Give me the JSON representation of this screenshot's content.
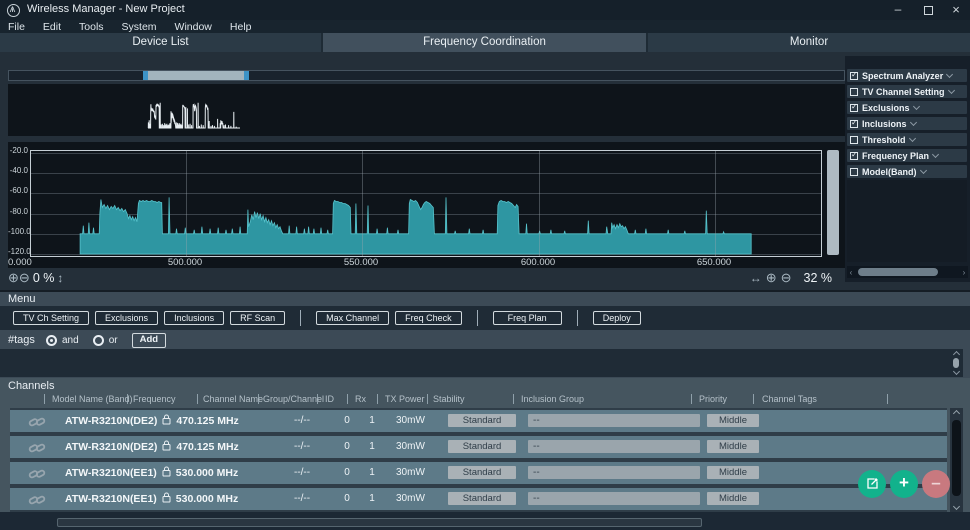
{
  "window": {
    "title": "Wireless Manager - New Project",
    "minimize": "–",
    "close": "×"
  },
  "menubar": {
    "items": [
      "File",
      "Edit",
      "Tools",
      "System",
      "Window",
      "Help"
    ]
  },
  "tabs": {
    "device_list": "Device List",
    "frequency_coordination": "Frequency Coordination",
    "monitor": "Monitor",
    "active": "Frequency Coordination"
  },
  "icons": {
    "zoom_in": "⊕",
    "zoom_out": "⊖",
    "v_arrows": "↕",
    "h_arrows": "↔"
  },
  "spectrum": {
    "left_zoom": "0 %",
    "right_zoom": "32 %",
    "y_labels": [
      "-20.0",
      "-40.0",
      "-60.0",
      "-80.0",
      "-100.0",
      "-120.0"
    ],
    "x_origin": "0.000",
    "x_ticks": [
      {
        "mhz": 500,
        "label": "500.000"
      },
      {
        "mhz": 550,
        "label": "550.000"
      },
      {
        "mhz": 600,
        "label": "600.000"
      },
      {
        "mhz": 650,
        "label": "650.000"
      }
    ],
    "colors": {
      "trace": "#2e96a2",
      "trace_edge": "#57c3cc",
      "background": "#0e141a"
    },
    "chart_data": {
      "type": "area",
      "x_unit": "MHz",
      "y_unit": "dB",
      "x_range": [
        456,
        680
      ],
      "y_range": [
        -122,
        -18
      ],
      "noise_floor_db": -100,
      "points": [
        [
          470,
          -120
        ],
        [
          470,
          -100
        ],
        [
          470.7,
          -100
        ],
        [
          470.9,
          -92
        ],
        [
          471.1,
          -100
        ],
        [
          472.3,
          -100
        ],
        [
          472.5,
          -89
        ],
        [
          472.7,
          -100
        ],
        [
          473.6,
          -100
        ],
        [
          473.8,
          -94
        ],
        [
          474,
          -100
        ],
        [
          475.4,
          -100
        ],
        [
          475.6,
          -79
        ],
        [
          475.9,
          -66
        ],
        [
          476.3,
          -74
        ],
        [
          476.8,
          -71
        ],
        [
          477.3,
          -75
        ],
        [
          477.8,
          -72
        ],
        [
          478.3,
          -76
        ],
        [
          478.8,
          -73
        ],
        [
          479.3,
          -75
        ],
        [
          479.8,
          -72
        ],
        [
          480.3,
          -76
        ],
        [
          480.8,
          -74
        ],
        [
          481.3,
          -77
        ],
        [
          481.8,
          -75
        ],
        [
          482.3,
          -78
        ],
        [
          482.8,
          -76
        ],
        [
          483.3,
          -80
        ],
        [
          483.7,
          -85
        ],
        [
          484.1,
          -82
        ],
        [
          484.5,
          -86
        ],
        [
          484.9,
          -83
        ],
        [
          485.3,
          -87
        ],
        [
          485.7,
          -84
        ],
        [
          486.1,
          -88
        ],
        [
          486.5,
          -70
        ],
        [
          486.8,
          -67
        ],
        [
          487.3,
          -68
        ],
        [
          487.8,
          -67
        ],
        [
          488.3,
          -68
        ],
        [
          488.8,
          -67
        ],
        [
          489.3,
          -68
        ],
        [
          489.8,
          -68
        ],
        [
          490.3,
          -67
        ],
        [
          490.8,
          -68
        ],
        [
          491.3,
          -68
        ],
        [
          491.8,
          -69
        ],
        [
          492.3,
          -68
        ],
        [
          492.8,
          -69
        ],
        [
          493.1,
          -69
        ],
        [
          493.3,
          -100
        ],
        [
          495,
          -100
        ],
        [
          495.2,
          -64
        ],
        [
          495.45,
          -100
        ],
        [
          497.1,
          -100
        ],
        [
          497.3,
          -95
        ],
        [
          497.5,
          -100
        ],
        [
          499.6,
          -100
        ],
        [
          499.8,
          -94
        ],
        [
          500,
          -100
        ],
        [
          502.1,
          -100
        ],
        [
          502.3,
          -96
        ],
        [
          502.5,
          -100
        ],
        [
          504.3,
          -100
        ],
        [
          504.5,
          -93
        ],
        [
          504.7,
          -100
        ],
        [
          506.6,
          -100
        ],
        [
          506.8,
          -95
        ],
        [
          507,
          -100
        ],
        [
          508.9,
          -100
        ],
        [
          509.1,
          -94
        ],
        [
          509.3,
          -100
        ],
        [
          511.1,
          -100
        ],
        [
          511.3,
          -96
        ],
        [
          511.5,
          -100
        ],
        [
          512.9,
          -100
        ],
        [
          513.1,
          -95
        ],
        [
          513.3,
          -100
        ],
        [
          515.1,
          -100
        ],
        [
          515.3,
          -93
        ],
        [
          515.5,
          -100
        ],
        [
          517.3,
          -100
        ],
        [
          517.5,
          -76
        ],
        [
          517.7,
          -93
        ],
        [
          518.2,
          -88
        ],
        [
          518.6,
          -81
        ],
        [
          519,
          -86
        ],
        [
          519.4,
          -78
        ],
        [
          519.8,
          -84
        ],
        [
          520.2,
          -79
        ],
        [
          520.6,
          -85
        ],
        [
          521,
          -80
        ],
        [
          521.4,
          -86
        ],
        [
          521.8,
          -82
        ],
        [
          522.2,
          -88
        ],
        [
          522.6,
          -84
        ],
        [
          523,
          -89
        ],
        [
          523.4,
          -86
        ],
        [
          523.8,
          -91
        ],
        [
          524.2,
          -87
        ],
        [
          524.6,
          -92
        ],
        [
          525,
          -89
        ],
        [
          525.4,
          -94
        ],
        [
          525.8,
          -91
        ],
        [
          526.2,
          -95
        ],
        [
          526.6,
          -93
        ],
        [
          527,
          -97
        ],
        [
          527.4,
          -100
        ],
        [
          529,
          -100
        ],
        [
          529.2,
          -92
        ],
        [
          529.4,
          -100
        ],
        [
          531.1,
          -100
        ],
        [
          531.3,
          -93
        ],
        [
          531.5,
          -100
        ],
        [
          533.3,
          -100
        ],
        [
          533.5,
          -95
        ],
        [
          533.7,
          -100
        ],
        [
          534.5,
          -100
        ],
        [
          534.7,
          -93
        ],
        [
          534.9,
          -100
        ],
        [
          536,
          -100
        ],
        [
          536.2,
          -95
        ],
        [
          536.4,
          -100
        ],
        [
          538,
          -100
        ],
        [
          538.2,
          -94
        ],
        [
          538.4,
          -100
        ],
        [
          539.9,
          -100
        ],
        [
          540.1,
          -96
        ],
        [
          540.3,
          -100
        ],
        [
          541.5,
          -100
        ],
        [
          541.7,
          -70
        ],
        [
          542,
          -67
        ],
        [
          542.5,
          -68
        ],
        [
          543,
          -68
        ],
        [
          543.5,
          -69
        ],
        [
          544,
          -69
        ],
        [
          544.5,
          -70
        ],
        [
          545,
          -70
        ],
        [
          545.5,
          -71
        ],
        [
          546,
          -72
        ],
        [
          546.5,
          -74
        ],
        [
          546.7,
          -100
        ],
        [
          547.9,
          -100
        ],
        [
          548.1,
          -70
        ],
        [
          548.35,
          -100
        ],
        [
          551.3,
          -100
        ],
        [
          551.5,
          -72
        ],
        [
          551.7,
          -100
        ],
        [
          553.9,
          -100
        ],
        [
          554.1,
          -95
        ],
        [
          554.3,
          -100
        ],
        [
          556.8,
          -100
        ],
        [
          557,
          -94
        ],
        [
          557.2,
          -100
        ],
        [
          559.8,
          -100
        ],
        [
          560,
          -96
        ],
        [
          560.2,
          -100
        ],
        [
          563,
          -100
        ],
        [
          563.2,
          -70
        ],
        [
          563.5,
          -66
        ],
        [
          564,
          -67
        ],
        [
          564.5,
          -68
        ],
        [
          565,
          -67
        ],
        [
          565.5,
          -69
        ],
        [
          566,
          -73
        ],
        [
          566.4,
          -76
        ],
        [
          566.8,
          -74
        ],
        [
          567.2,
          -71
        ],
        [
          567.6,
          -69
        ],
        [
          568,
          -68
        ],
        [
          568.5,
          -69
        ],
        [
          569,
          -70
        ],
        [
          569.5,
          -72
        ],
        [
          570,
          -74
        ],
        [
          570.3,
          -100
        ],
        [
          573.4,
          -100
        ],
        [
          573.6,
          -64
        ],
        [
          573.85,
          -100
        ],
        [
          576,
          -100
        ],
        [
          576.2,
          -97
        ],
        [
          576.4,
          -100
        ],
        [
          580,
          -100
        ],
        [
          580.2,
          -95
        ],
        [
          580.4,
          -100
        ],
        [
          583.9,
          -100
        ],
        [
          584.1,
          -96
        ],
        [
          584.3,
          -100
        ],
        [
          588.1,
          -100
        ],
        [
          588.3,
          -72
        ],
        [
          588.7,
          -68
        ],
        [
          589.2,
          -67
        ],
        [
          589.7,
          -68
        ],
        [
          590.2,
          -68
        ],
        [
          590.7,
          -69
        ],
        [
          591.2,
          -68
        ],
        [
          591.7,
          -69
        ],
        [
          592.2,
          -70
        ],
        [
          592.7,
          -72
        ],
        [
          593.2,
          -74
        ],
        [
          593.6,
          -71
        ],
        [
          594,
          -73
        ],
        [
          594.3,
          -100
        ],
        [
          596.2,
          -100
        ],
        [
          596.4,
          -90
        ],
        [
          596.6,
          -100
        ],
        [
          599.9,
          -100
        ],
        [
          600.1,
          -97
        ],
        [
          600.3,
          -100
        ],
        [
          603.1,
          -100
        ],
        [
          603.3,
          -96
        ],
        [
          603.5,
          -100
        ],
        [
          607,
          -100
        ],
        [
          607.2,
          -97
        ],
        [
          607.4,
          -100
        ],
        [
          613.7,
          -100
        ],
        [
          613.9,
          -87
        ],
        [
          614.1,
          -100
        ],
        [
          618.9,
          -100
        ],
        [
          619.1,
          -93
        ],
        [
          619.4,
          -100
        ],
        [
          620.3,
          -100
        ],
        [
          620.5,
          -89
        ],
        [
          620.8,
          -94
        ],
        [
          621.2,
          -91
        ],
        [
          621.6,
          -95
        ],
        [
          622,
          -91
        ],
        [
          622.4,
          -94
        ],
        [
          622.8,
          -90
        ],
        [
          623.2,
          -93
        ],
        [
          623.6,
          -92
        ],
        [
          624,
          -95
        ],
        [
          624.4,
          -93
        ],
        [
          624.8,
          -96
        ],
        [
          625.2,
          -100
        ],
        [
          627,
          -100
        ],
        [
          627.2,
          -96
        ],
        [
          627.4,
          -100
        ],
        [
          630,
          -100
        ],
        [
          630.2,
          -95
        ],
        [
          630.4,
          -100
        ],
        [
          636.3,
          -100
        ],
        [
          636.5,
          -96
        ],
        [
          636.7,
          -100
        ],
        [
          641,
          -100
        ],
        [
          641.2,
          -97
        ],
        [
          641.4,
          -100
        ],
        [
          647.1,
          -100
        ],
        [
          647.3,
          -77
        ],
        [
          647.55,
          -100
        ],
        [
          652,
          -100
        ],
        [
          652.2,
          -98
        ],
        [
          652.4,
          -100
        ],
        [
          660,
          -100
        ],
        [
          660,
          -120
        ]
      ]
    }
  },
  "right_panel": {
    "items": [
      {
        "label": "Spectrum Analyzer",
        "checked": true
      },
      {
        "label": "TV Channel Setting",
        "checked": false
      },
      {
        "label": "Exclusions",
        "checked": true
      },
      {
        "label": "Inclusions",
        "checked": true
      },
      {
        "label": "Threshold",
        "checked": false
      },
      {
        "label": "Frequency Plan",
        "checked": true
      },
      {
        "label": "Model(Band)",
        "checked": false
      }
    ]
  },
  "menu_section": {
    "title": "Menu",
    "groups": [
      [
        "TV Ch Setting",
        "Exclusions",
        "Inclusions",
        "RF Scan"
      ],
      [
        "Max Channel",
        "Freq Check"
      ],
      [
        "Freq Plan"
      ],
      [
        "Deploy"
      ]
    ],
    "tags": {
      "label": "#tags",
      "and_label": "and",
      "or_label": "or",
      "and_selected": true,
      "or_selected": false,
      "add_label": "Add"
    }
  },
  "channels": {
    "title": "Channels",
    "columns": [
      "Model Name (Band)",
      "Frequency",
      "Channel Name",
      "Group/Channel",
      "ID",
      "Rx",
      "TX Power",
      "Stability",
      "Inclusion Group",
      "Priority",
      "Channel Tags"
    ],
    "rows": [
      {
        "model": "ATW-R3210N(DE2)",
        "frequency": "470.125 MHz",
        "channel_name": "",
        "group_channel": "--/--",
        "id": "0",
        "rx": "1",
        "tx_power": "30mW",
        "stability": "Standard",
        "inclusion_group": "--",
        "priority": "Middle",
        "channel_tags": ""
      },
      {
        "model": "ATW-R3210N(DE2)",
        "frequency": "470.125 MHz",
        "channel_name": "",
        "group_channel": "--/--",
        "id": "0",
        "rx": "1",
        "tx_power": "30mW",
        "stability": "Standard",
        "inclusion_group": "--",
        "priority": "Middle",
        "channel_tags": ""
      },
      {
        "model": "ATW-R3210N(EE1)",
        "frequency": "530.000 MHz",
        "channel_name": "",
        "group_channel": "--/--",
        "id": "0",
        "rx": "1",
        "tx_power": "30mW",
        "stability": "Standard",
        "inclusion_group": "--",
        "priority": "Middle",
        "channel_tags": ""
      },
      {
        "model": "ATW-R3210N(EE1)",
        "frequency": "530.000 MHz",
        "channel_name": "",
        "group_channel": "--/--",
        "id": "0",
        "rx": "1",
        "tx_power": "30mW",
        "stability": "Standard",
        "inclusion_group": "--",
        "priority": "Middle",
        "channel_tags": ""
      }
    ]
  }
}
